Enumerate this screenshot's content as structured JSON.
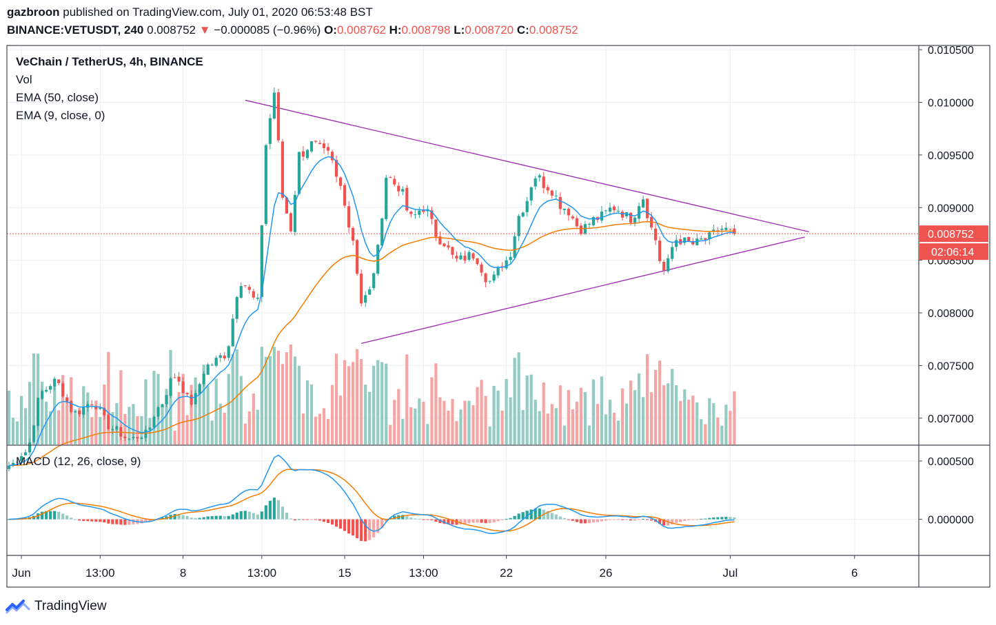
{
  "header": {
    "author": "gazbroon",
    "published_text": "published on TradingView.com, July 01, 2020 06:53:48 BST",
    "symbol": "BINANCE:VETUSDT, 240",
    "last_price": "0.008752",
    "change_arrow": "▼",
    "change": "−0.000085 (−0.96%)",
    "open_label": "O:",
    "open": "0.008762",
    "high_label": "H:",
    "high": "0.008798",
    "low_label": "L:",
    "low": "0.008720",
    "close_label": "C:",
    "close": "0.008752"
  },
  "legend": {
    "title": "VeChain / TetherUS, 4h, BINANCE",
    "vol": "Vol",
    "ema50": "EMA (50, close)",
    "ema9": "EMA (9, close, 0)",
    "macd": "MACD (12, 26, close, 9)"
  },
  "price_badge": "0.008752",
  "countdown_badge": "02:06:14",
  "footer": {
    "brand": "TradingView"
  },
  "colors": {
    "up": "#26a69a",
    "down": "#ef5350",
    "vol_up": "#94ccc4",
    "vol_down": "#f4a5a4",
    "ema9": "#2196f3",
    "ema50": "#f57c00",
    "trendline": "#9c27b0",
    "grid": "#ebeef2",
    "axis_text": "#131722",
    "price_line": "#ef5350"
  },
  "chart_data": {
    "type": "candlestick",
    "price_axis": {
      "ticks": [
        "0.010500",
        "0.010000",
        "0.009500",
        "0.009000",
        "0.008500",
        "0.008000",
        "0.007500",
        "0.007000"
      ],
      "range": [
        0.00675,
        0.01054
      ]
    },
    "macd_axis": {
      "ticks": [
        "0.000500",
        "0.000000"
      ],
      "range": [
        -0.00031,
        0.00063
      ]
    },
    "time_axis": {
      "ticks": [
        {
          "label": "Jun",
          "bar": 3
        },
        {
          "label": "13:00",
          "bar": 22
        },
        {
          "label": "8",
          "bar": 42
        },
        {
          "label": "13:00",
          "bar": 61
        },
        {
          "label": "15",
          "bar": 81
        },
        {
          "label": "13:00",
          "bar": 100
        },
        {
          "label": "22",
          "bar": 120
        },
        {
          "label": "26",
          "bar": 144
        },
        {
          "label": "Jul",
          "bar": 174
        },
        {
          "label": "6",
          "bar": 204
        }
      ],
      "bar_range": [
        -0.5,
        219.5
      ]
    },
    "anchors": [
      {
        "bar": 0,
        "price": 0.00655
      },
      {
        "bar": 4,
        "price": 0.00668
      },
      {
        "bar": 8,
        "price": 0.00725
      },
      {
        "bar": 11,
        "price": 0.00735
      },
      {
        "bar": 16,
        "price": 0.00705
      },
      {
        "bar": 20,
        "price": 0.00715
      },
      {
        "bar": 25,
        "price": 0.0069
      },
      {
        "bar": 29,
        "price": 0.0068
      },
      {
        "bar": 33,
        "price": 0.00685
      },
      {
        "bar": 36,
        "price": 0.0071
      },
      {
        "bar": 40,
        "price": 0.0074
      },
      {
        "bar": 44,
        "price": 0.00715
      },
      {
        "bar": 48,
        "price": 0.0075
      },
      {
        "bar": 52,
        "price": 0.0076
      },
      {
        "bar": 56,
        "price": 0.0083
      },
      {
        "bar": 60,
        "price": 0.0081
      },
      {
        "bar": 62,
        "price": 0.0096
      },
      {
        "bar": 64,
        "price": 0.0101
      },
      {
        "bar": 66,
        "price": 0.0091
      },
      {
        "bar": 68,
        "price": 0.0088
      },
      {
        "bar": 70,
        "price": 0.0095
      },
      {
        "bar": 73,
        "price": 0.0096
      },
      {
        "bar": 77,
        "price": 0.0095
      },
      {
        "bar": 80,
        "price": 0.0092
      },
      {
        "bar": 83,
        "price": 0.0087
      },
      {
        "bar": 85,
        "price": 0.0081
      },
      {
        "bar": 87,
        "price": 0.0082
      },
      {
        "bar": 89,
        "price": 0.0086
      },
      {
        "bar": 91,
        "price": 0.0093
      },
      {
        "bar": 94,
        "price": 0.0092
      },
      {
        "bar": 97,
        "price": 0.0089
      },
      {
        "bar": 100,
        "price": 0.009
      },
      {
        "bar": 104,
        "price": 0.0087
      },
      {
        "bar": 108,
        "price": 0.0085
      },
      {
        "bar": 112,
        "price": 0.00855
      },
      {
        "bar": 116,
        "price": 0.0083
      },
      {
        "bar": 120,
        "price": 0.0085
      },
      {
        "bar": 124,
        "price": 0.009
      },
      {
        "bar": 127,
        "price": 0.0093
      },
      {
        "bar": 130,
        "price": 0.0092
      },
      {
        "bar": 134,
        "price": 0.009
      },
      {
        "bar": 138,
        "price": 0.0088
      },
      {
        "bar": 142,
        "price": 0.0089
      },
      {
        "bar": 146,
        "price": 0.009
      },
      {
        "bar": 150,
        "price": 0.0089
      },
      {
        "bar": 153,
        "price": 0.0091
      },
      {
        "bar": 155,
        "price": 0.0088
      },
      {
        "bar": 158,
        "price": 0.0084
      },
      {
        "bar": 161,
        "price": 0.0087
      },
      {
        "bar": 165,
        "price": 0.00865
      },
      {
        "bar": 168,
        "price": 0.0087
      },
      {
        "bar": 172,
        "price": 0.0088
      },
      {
        "bar": 175,
        "price": 0.008752
      }
    ],
    "volume_scale": 1.0,
    "trendlines": [
      {
        "name": "upper",
        "from": {
          "bar": 57,
          "price": 0.01002
        },
        "to": {
          "bar": 193,
          "price": 0.00877
        }
      },
      {
        "name": "lower",
        "from": {
          "bar": 85,
          "price": 0.00771
        },
        "to": {
          "bar": 192,
          "price": 0.00872
        }
      }
    ],
    "last_price": 0.008752
  }
}
